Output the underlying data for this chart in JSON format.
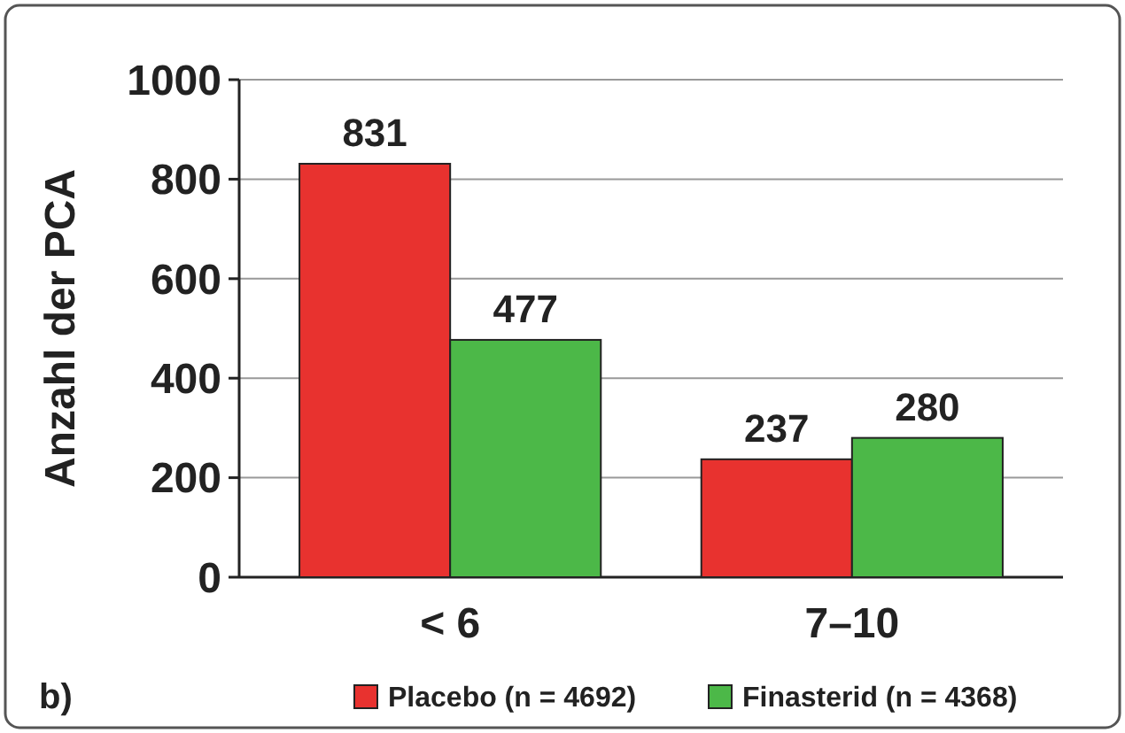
{
  "chart_data": {
    "type": "bar",
    "ylabel": "Anzahl der PCA",
    "categories": [
      "< 6",
      "7–10"
    ],
    "series": [
      {
        "name": "Placebo (n = 4692)",
        "color": "#e8322f",
        "values": [
          831,
          237
        ]
      },
      {
        "name": "Finasterid (n = 4368)",
        "color": "#4cb848",
        "values": [
          477,
          280
        ]
      }
    ],
    "ylim": [
      0,
      1000
    ],
    "yticks": [
      0,
      200,
      400,
      600,
      800,
      1000
    ],
    "grid": "y",
    "legend": "bottom",
    "data_labels": true,
    "annotations": [
      "b)"
    ]
  }
}
